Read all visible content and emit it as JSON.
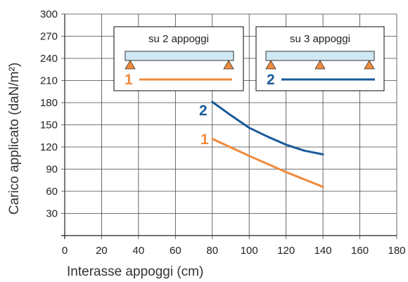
{
  "chart_data": {
    "type": "line",
    "xlabel": "Interasse appoggi (cm)",
    "ylabel": "Carico applicato  (daN/m²)",
    "xlim": [
      0,
      180
    ],
    "ylim": [
      0,
      300
    ],
    "xticks": [
      0,
      20,
      40,
      60,
      80,
      100,
      120,
      140,
      160,
      180
    ],
    "yticks": [
      30,
      60,
      90,
      120,
      150,
      180,
      210,
      240,
      270,
      300
    ],
    "x_tick_labels": [
      "0",
      "20",
      "40",
      "60",
      "80",
      "100",
      "120",
      "140",
      "160",
      "180"
    ],
    "y_tick_labels": [
      "30",
      "60",
      "90",
      "120",
      "150",
      "180",
      "210",
      "240",
      "270",
      "300"
    ],
    "grid": true,
    "series": [
      {
        "name": "1",
        "color": "#f08a3c",
        "x": [
          80,
          100,
          120,
          140
        ],
        "y": [
          131,
          108,
          86,
          66
        ]
      },
      {
        "name": "2",
        "color": "#1a5a9a",
        "x": [
          80,
          90,
          100,
          110,
          120,
          130,
          140
        ],
        "y": [
          181,
          163,
          146,
          134,
          123,
          115,
          110
        ]
      }
    ],
    "legend": [
      {
        "title": "su 2 appoggi",
        "number": "1",
        "supports": 2,
        "color": "#f08a3c"
      },
      {
        "title": "su 3 appoggi",
        "number": "2",
        "supports": 3,
        "color": "#1a5a9a"
      }
    ],
    "beam_color": "#cfe8f4",
    "support_color": "#f08a3c"
  }
}
